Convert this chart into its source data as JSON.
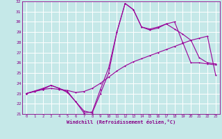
{
  "xlabel": "Windchill (Refroidissement éolien,°C)",
  "bg_color": "#c5e8e8",
  "grid_color": "#ffffff",
  "line_color": "#990099",
  "xlim": [
    -0.5,
    23.5
  ],
  "ylim": [
    21,
    32
  ],
  "x_ticks": [
    0,
    1,
    2,
    3,
    4,
    5,
    6,
    7,
    8,
    9,
    10,
    11,
    12,
    13,
    14,
    15,
    16,
    17,
    18,
    19,
    20,
    21,
    22,
    23
  ],
  "y_ticks": [
    21,
    22,
    23,
    24,
    25,
    26,
    27,
    28,
    29,
    30,
    31,
    32
  ],
  "line1_x": [
    0,
    1,
    2,
    3,
    4,
    5,
    6,
    7,
    8,
    9,
    10,
    11,
    12,
    13,
    14,
    15,
    16,
    17,
    18,
    19,
    20,
    21,
    22,
    23
  ],
  "line1_y": [
    23.0,
    23.2,
    23.4,
    23.5,
    23.4,
    23.3,
    23.1,
    23.2,
    23.5,
    24.0,
    24.6,
    25.2,
    25.7,
    26.1,
    26.4,
    26.7,
    27.0,
    27.3,
    27.6,
    27.9,
    28.2,
    28.4,
    28.6,
    24.8
  ],
  "line2_x": [
    0,
    2,
    3,
    4,
    5,
    6,
    7,
    8,
    9,
    10,
    11,
    12,
    13,
    14,
    15,
    16,
    17,
    18,
    19,
    20,
    21,
    22,
    23
  ],
  "line2_y": [
    23.0,
    23.4,
    23.8,
    23.5,
    23.1,
    22.2,
    21.1,
    21.2,
    23.4,
    25.5,
    29.0,
    31.8,
    31.2,
    29.5,
    29.3,
    29.5,
    29.8,
    30.0,
    28.0,
    26.0,
    26.0,
    25.9,
    25.8
  ],
  "line3_x": [
    0,
    2,
    3,
    4,
    5,
    6,
    7,
    8,
    9,
    10,
    11,
    12,
    13,
    14,
    15,
    16,
    17,
    18,
    19,
    20,
    21,
    22,
    23
  ],
  "line3_y": [
    23.0,
    23.5,
    23.8,
    23.5,
    23.2,
    22.2,
    21.3,
    21.1,
    23.0,
    25.0,
    29.0,
    31.8,
    31.2,
    29.5,
    29.2,
    29.4,
    29.8,
    29.3,
    28.8,
    28.2,
    26.5,
    26.0,
    25.9
  ]
}
